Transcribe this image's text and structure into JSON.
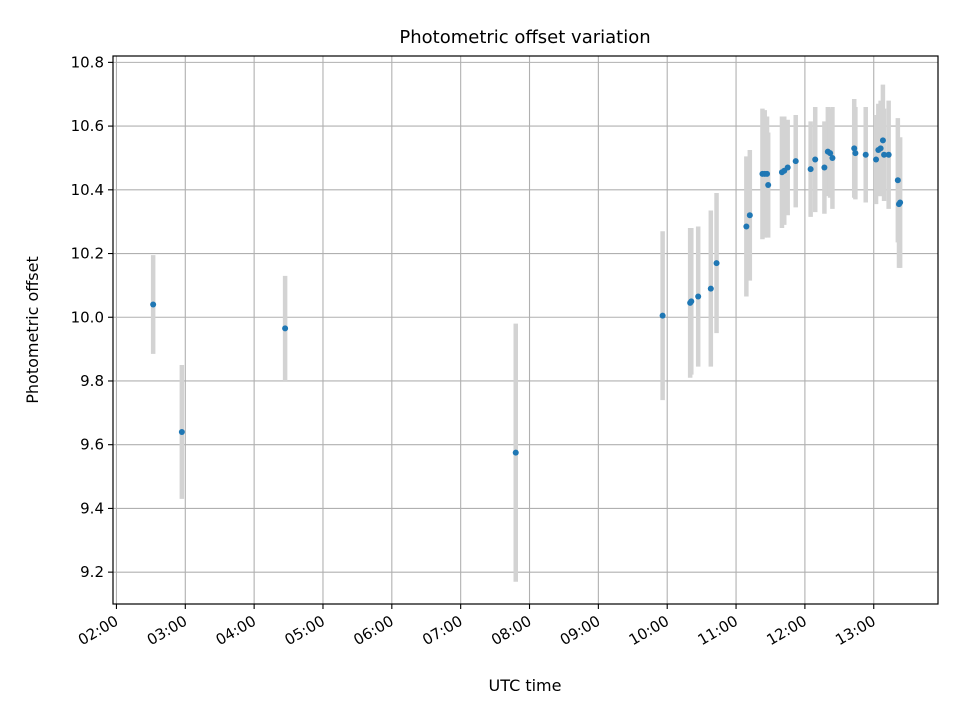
{
  "chart_data": {
    "type": "scatter",
    "title": "Photometric offset variation",
    "xlabel": "UTC time",
    "ylabel": "Photometric offset",
    "x_unit": "UTC hours",
    "xlim": [
      "01:57",
      "13:56"
    ],
    "ylim": [
      9.1,
      10.82
    ],
    "grid": true,
    "x_ticks": [
      "02:00",
      "03:00",
      "04:00",
      "05:00",
      "06:00",
      "07:00",
      "08:00",
      "09:00",
      "10:00",
      "11:00",
      "12:00",
      "13:00"
    ],
    "y_ticks": [
      9.2,
      9.4,
      9.6,
      9.8,
      10.0,
      10.2,
      10.4,
      10.6,
      10.8
    ],
    "colors": {
      "points": "#1f77b4",
      "errorbars": "#d3d3d3",
      "grid": "#b0b0b0"
    },
    "points": [
      {
        "t": "02:32",
        "y": 10.04,
        "err": 0.155
      },
      {
        "t": "02:57",
        "y": 9.64,
        "err": 0.21
      },
      {
        "t": "04:27",
        "y": 9.965,
        "err": 0.165
      },
      {
        "t": "07:48",
        "y": 9.575,
        "err": 0.405
      },
      {
        "t": "09:56",
        "y": 10.005,
        "err": 0.265
      },
      {
        "t": "10:20",
        "y": 10.045,
        "err": 0.235
      },
      {
        "t": "10:21",
        "y": 10.05,
        "err": 0.23
      },
      {
        "t": "10:27",
        "y": 10.065,
        "err": 0.22
      },
      {
        "t": "10:38",
        "y": 10.09,
        "err": 0.245
      },
      {
        "t": "10:43",
        "y": 10.17,
        "err": 0.22
      },
      {
        "t": "11:09",
        "y": 10.285,
        "err": 0.22
      },
      {
        "t": "11:12",
        "y": 10.32,
        "err": 0.205
      },
      {
        "t": "11:23",
        "y": 10.45,
        "err": 0.205
      },
      {
        "t": "11:25",
        "y": 10.45,
        "err": 0.2
      },
      {
        "t": "11:27",
        "y": 10.45,
        "err": 0.18
      },
      {
        "t": "11:28",
        "y": 10.415,
        "err": 0.165
      },
      {
        "t": "11:40",
        "y": 10.455,
        "err": 0.175
      },
      {
        "t": "11:42",
        "y": 10.46,
        "err": 0.17
      },
      {
        "t": "11:45",
        "y": 10.47,
        "err": 0.15
      },
      {
        "t": "11:52",
        "y": 10.49,
        "err": 0.145
      },
      {
        "t": "12:05",
        "y": 10.465,
        "err": 0.15
      },
      {
        "t": "12:09",
        "y": 10.495,
        "err": 0.165
      },
      {
        "t": "12:17",
        "y": 10.47,
        "err": 0.145
      },
      {
        "t": "12:20",
        "y": 10.52,
        "err": 0.14
      },
      {
        "t": "12:22",
        "y": 10.515,
        "err": 0.14
      },
      {
        "t": "12:24",
        "y": 10.5,
        "err": 0.16
      },
      {
        "t": "12:43",
        "y": 10.53,
        "err": 0.155
      },
      {
        "t": "12:44",
        "y": 10.515,
        "err": 0.145
      },
      {
        "t": "12:53",
        "y": 10.51,
        "err": 0.15
      },
      {
        "t": "13:02",
        "y": 10.495,
        "err": 0.14
      },
      {
        "t": "13:04",
        "y": 10.525,
        "err": 0.145
      },
      {
        "t": "13:06",
        "y": 10.53,
        "err": 0.15
      },
      {
        "t": "13:08",
        "y": 10.555,
        "err": 0.175
      },
      {
        "t": "13:09",
        "y": 10.51,
        "err": 0.145
      },
      {
        "t": "13:13",
        "y": 10.51,
        "err": 0.17
      },
      {
        "t": "13:21",
        "y": 10.43,
        "err": 0.195
      },
      {
        "t": "13:22",
        "y": 10.355,
        "err": 0.2
      },
      {
        "t": "13:23",
        "y": 10.36,
        "err": 0.205
      }
    ]
  }
}
